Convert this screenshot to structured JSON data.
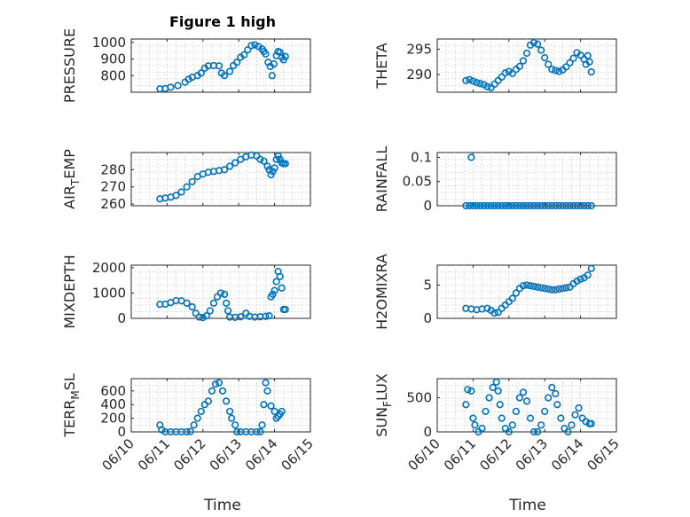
{
  "figure": {
    "title": "Figure 1 high",
    "marker_color": "#0072BD",
    "xticks": [
      "06/10",
      "06/11",
      "06/12",
      "06/13",
      "06/14",
      "06/15"
    ],
    "xlabel": "Time"
  },
  "chart_data": [
    {
      "type": "scatter",
      "ylabel": "PRESSURE",
      "xlim": [
        0,
        5
      ],
      "ylim": [
        700,
        1020
      ],
      "yticks": [
        800,
        900,
        1000
      ],
      "x_unit": "days since 06/10",
      "points": [
        [
          0.8,
          720
        ],
        [
          0.95,
          722
        ],
        [
          1.1,
          730
        ],
        [
          1.3,
          740
        ],
        [
          1.5,
          760
        ],
        [
          1.6,
          778
        ],
        [
          1.7,
          790
        ],
        [
          1.85,
          800
        ],
        [
          1.95,
          815
        ],
        [
          2.05,
          845
        ],
        [
          2.15,
          858
        ],
        [
          2.3,
          860
        ],
        [
          2.45,
          858
        ],
        [
          2.52,
          815
        ],
        [
          2.6,
          800
        ],
        [
          2.75,
          825
        ],
        [
          2.85,
          860
        ],
        [
          2.95,
          880
        ],
        [
          3.05,
          910
        ],
        [
          3.15,
          925
        ],
        [
          3.25,
          955
        ],
        [
          3.35,
          980
        ],
        [
          3.45,
          985
        ],
        [
          3.55,
          975
        ],
        [
          3.65,
          960
        ],
        [
          3.7,
          945
        ],
        [
          3.75,
          930
        ],
        [
          3.82,
          880
        ],
        [
          3.88,
          855
        ],
        [
          3.93,
          800
        ],
        [
          3.98,
          870
        ],
        [
          4.05,
          920
        ],
        [
          4.1,
          945
        ],
        [
          4.15,
          940
        ],
        [
          4.2,
          910
        ],
        [
          4.25,
          895
        ],
        [
          4.3,
          915
        ]
      ]
    },
    {
      "type": "scatter",
      "ylabel": "THETA",
      "xlim": [
        0,
        5
      ],
      "ylim": [
        286.5,
        297
      ],
      "yticks": [
        290,
        295
      ],
      "points": [
        [
          0.8,
          288.8
        ],
        [
          0.9,
          289
        ],
        [
          1.0,
          288.7
        ],
        [
          1.1,
          288.4
        ],
        [
          1.2,
          288.2
        ],
        [
          1.3,
          288
        ],
        [
          1.4,
          287.6
        ],
        [
          1.5,
          287.4
        ],
        [
          1.6,
          288.1
        ],
        [
          1.7,
          288.8
        ],
        [
          1.8,
          289.5
        ],
        [
          1.9,
          290.3
        ],
        [
          2.0,
          290.6
        ],
        [
          2.1,
          290.2
        ],
        [
          2.2,
          291
        ],
        [
          2.3,
          291.6
        ],
        [
          2.4,
          292.7
        ],
        [
          2.5,
          294.2
        ],
        [
          2.6,
          295.8
        ],
        [
          2.7,
          296.3
        ],
        [
          2.8,
          296
        ],
        [
          2.9,
          294.8
        ],
        [
          3.0,
          293.3
        ],
        [
          3.1,
          292
        ],
        [
          3.2,
          291
        ],
        [
          3.3,
          290.8
        ],
        [
          3.4,
          290.6
        ],
        [
          3.5,
          290.9
        ],
        [
          3.6,
          291.5
        ],
        [
          3.7,
          292.3
        ],
        [
          3.8,
          293.2
        ],
        [
          3.9,
          294.3
        ],
        [
          4.0,
          293.8
        ],
        [
          4.1,
          293
        ],
        [
          4.15,
          292
        ],
        [
          4.2,
          293.7
        ],
        [
          4.25,
          292.5
        ],
        [
          4.3,
          290.5
        ]
      ]
    },
    {
      "type": "scatter",
      "ylabel": "AIR_TEMP",
      "xlim": [
        0,
        5
      ],
      "ylim": [
        259,
        290
      ],
      "yticks": [
        260,
        270,
        280
      ],
      "points": [
        [
          0.8,
          263
        ],
        [
          0.95,
          263.5
        ],
        [
          1.1,
          264
        ],
        [
          1.25,
          265
        ],
        [
          1.4,
          267
        ],
        [
          1.55,
          270
        ],
        [
          1.7,
          273
        ],
        [
          1.85,
          276
        ],
        [
          2.0,
          277.5
        ],
        [
          2.15,
          278.5
        ],
        [
          2.3,
          279
        ],
        [
          2.45,
          279.5
        ],
        [
          2.6,
          280
        ],
        [
          2.75,
          282
        ],
        [
          2.9,
          284
        ],
        [
          3.05,
          286
        ],
        [
          3.2,
          287.5
        ],
        [
          3.35,
          288.5
        ],
        [
          3.5,
          288
        ],
        [
          3.6,
          286
        ],
        [
          3.7,
          285
        ],
        [
          3.8,
          282
        ],
        [
          3.85,
          280
        ],
        [
          3.9,
          277
        ],
        [
          3.95,
          279
        ],
        [
          4.0,
          281
        ],
        [
          4.05,
          286
        ],
        [
          4.1,
          288
        ],
        [
          4.15,
          286
        ],
        [
          4.2,
          284
        ],
        [
          4.25,
          283.5
        ],
        [
          4.3,
          283.5
        ]
      ]
    },
    {
      "type": "scatter",
      "ylabel": "RAINFALL",
      "xlim": [
        0,
        5
      ],
      "ylim": [
        0,
        0.11
      ],
      "yticks": [
        0,
        0.05,
        0.1
      ],
      "points": [
        [
          0.95,
          0.1
        ],
        [
          0.8,
          0
        ],
        [
          0.9,
          0
        ],
        [
          1.0,
          0
        ],
        [
          1.1,
          0
        ],
        [
          1.2,
          0
        ],
        [
          1.3,
          0
        ],
        [
          1.4,
          0
        ],
        [
          1.5,
          0
        ],
        [
          1.6,
          0
        ],
        [
          1.7,
          0
        ],
        [
          1.8,
          0
        ],
        [
          1.9,
          0
        ],
        [
          2.0,
          0
        ],
        [
          2.1,
          0
        ],
        [
          2.2,
          0
        ],
        [
          2.3,
          0
        ],
        [
          2.4,
          0
        ],
        [
          2.5,
          0
        ],
        [
          2.6,
          0
        ],
        [
          2.7,
          0
        ],
        [
          2.8,
          0
        ],
        [
          2.9,
          0
        ],
        [
          3.0,
          0
        ],
        [
          3.1,
          0
        ],
        [
          3.2,
          0
        ],
        [
          3.3,
          0
        ],
        [
          3.4,
          0
        ],
        [
          3.5,
          0
        ],
        [
          3.6,
          0
        ],
        [
          3.7,
          0
        ],
        [
          3.8,
          0
        ],
        [
          3.9,
          0
        ],
        [
          4.0,
          0
        ],
        [
          4.1,
          0
        ],
        [
          4.2,
          0
        ],
        [
          4.3,
          0
        ]
      ]
    },
    {
      "type": "scatter",
      "ylabel": "MIXDEPTH",
      "xlim": [
        0,
        5
      ],
      "ylim": [
        0,
        2100
      ],
      "yticks": [
        0,
        1000,
        2000
      ],
      "points": [
        [
          0.8,
          550
        ],
        [
          0.95,
          560
        ],
        [
          1.1,
          620
        ],
        [
          1.25,
          700
        ],
        [
          1.4,
          690
        ],
        [
          1.55,
          600
        ],
        [
          1.7,
          450
        ],
        [
          1.8,
          200
        ],
        [
          1.9,
          50
        ],
        [
          2.0,
          30
        ],
        [
          2.1,
          100
        ],
        [
          2.2,
          300
        ],
        [
          2.3,
          600
        ],
        [
          2.4,
          850
        ],
        [
          2.5,
          1000
        ],
        [
          2.6,
          950
        ],
        [
          2.65,
          600
        ],
        [
          2.7,
          300
        ],
        [
          2.75,
          50
        ],
        [
          2.9,
          40
        ],
        [
          3.05,
          60
        ],
        [
          3.2,
          200
        ],
        [
          3.3,
          80
        ],
        [
          3.45,
          50
        ],
        [
          3.6,
          60
        ],
        [
          3.75,
          80
        ],
        [
          3.85,
          100
        ],
        [
          3.9,
          850
        ],
        [
          3.95,
          950
        ],
        [
          4.0,
          1100
        ],
        [
          4.05,
          1450
        ],
        [
          4.1,
          1850
        ],
        [
          4.15,
          1650
        ],
        [
          4.2,
          1200
        ],
        [
          4.25,
          350
        ],
        [
          4.3,
          350
        ]
      ]
    },
    {
      "type": "scatter",
      "ylabel": "H2OMIXRA",
      "xlim": [
        0,
        5
      ],
      "ylim": [
        0,
        8
      ],
      "yticks": [
        0,
        5
      ],
      "points": [
        [
          0.8,
          1.5
        ],
        [
          0.95,
          1.4
        ],
        [
          1.1,
          1.3
        ],
        [
          1.25,
          1.4
        ],
        [
          1.4,
          1.5
        ],
        [
          1.5,
          1.2
        ],
        [
          1.6,
          0.8
        ],
        [
          1.7,
          0.9
        ],
        [
          1.8,
          1.5
        ],
        [
          1.9,
          2
        ],
        [
          2.0,
          2.5
        ],
        [
          2.1,
          3
        ],
        [
          2.2,
          3.8
        ],
        [
          2.3,
          4.5
        ],
        [
          2.4,
          4.9
        ],
        [
          2.5,
          5
        ],
        [
          2.6,
          4.9
        ],
        [
          2.7,
          4.8
        ],
        [
          2.8,
          4.7
        ],
        [
          2.9,
          4.6
        ],
        [
          3.0,
          4.5
        ],
        [
          3.1,
          4.4
        ],
        [
          3.2,
          4.3
        ],
        [
          3.3,
          4.3
        ],
        [
          3.4,
          4.4
        ],
        [
          3.5,
          4.5
        ],
        [
          3.6,
          4.6
        ],
        [
          3.7,
          4.7
        ],
        [
          3.8,
          5.2
        ],
        [
          3.9,
          5.6
        ],
        [
          4.0,
          5.9
        ],
        [
          4.1,
          6.1
        ],
        [
          4.2,
          6.5
        ],
        [
          4.3,
          7.5
        ]
      ]
    },
    {
      "type": "scatter",
      "ylabel": "TERR_MSL",
      "xlim": [
        0,
        5
      ],
      "ylim": [
        0,
        780
      ],
      "yticks": [
        0,
        200,
        400,
        600
      ],
      "points": [
        [
          0.8,
          100
        ],
        [
          0.85,
          30
        ],
        [
          0.95,
          0
        ],
        [
          1.1,
          0
        ],
        [
          1.25,
          0
        ],
        [
          1.4,
          0
        ],
        [
          1.55,
          0
        ],
        [
          1.65,
          5
        ],
        [
          1.75,
          100
        ],
        [
          1.85,
          200
        ],
        [
          1.95,
          300
        ],
        [
          2.05,
          400
        ],
        [
          2.15,
          450
        ],
        [
          2.25,
          600
        ],
        [
          2.35,
          700
        ],
        [
          2.45,
          720
        ],
        [
          2.55,
          600
        ],
        [
          2.65,
          450
        ],
        [
          2.75,
          300
        ],
        [
          2.8,
          200
        ],
        [
          2.9,
          100
        ],
        [
          2.95,
          0
        ],
        [
          3.05,
          0
        ],
        [
          3.2,
          0
        ],
        [
          3.35,
          0
        ],
        [
          3.5,
          0
        ],
        [
          3.6,
          0
        ],
        [
          3.65,
          100
        ],
        [
          3.7,
          400
        ],
        [
          3.75,
          720
        ],
        [
          3.8,
          600
        ],
        [
          3.9,
          380
        ],
        [
          4.0,
          300
        ],
        [
          4.05,
          200
        ],
        [
          4.1,
          230
        ],
        [
          4.15,
          260
        ],
        [
          4.2,
          300
        ]
      ]
    },
    {
      "type": "scatter",
      "ylabel": "SUN_FLUX",
      "xlim": [
        0,
        5
      ],
      "ylim": [
        0,
        780
      ],
      "yticks": [
        0,
        500
      ],
      "points": [
        [
          0.8,
          400
        ],
        [
          0.85,
          620
        ],
        [
          0.95,
          600
        ],
        [
          1.0,
          200
        ],
        [
          1.05,
          100
        ],
        [
          1.15,
          0
        ],
        [
          1.25,
          50
        ],
        [
          1.35,
          300
        ],
        [
          1.45,
          500
        ],
        [
          1.55,
          650
        ],
        [
          1.65,
          730
        ],
        [
          1.7,
          600
        ],
        [
          1.75,
          400
        ],
        [
          1.8,
          200
        ],
        [
          1.9,
          50
        ],
        [
          2.0,
          0
        ],
        [
          2.1,
          100
        ],
        [
          2.2,
          300
        ],
        [
          2.3,
          500
        ],
        [
          2.4,
          580
        ],
        [
          2.5,
          450
        ],
        [
          2.6,
          200
        ],
        [
          2.7,
          0
        ],
        [
          2.8,
          0
        ],
        [
          2.9,
          100
        ],
        [
          3.0,
          300
        ],
        [
          3.1,
          500
        ],
        [
          3.2,
          650
        ],
        [
          3.3,
          560
        ],
        [
          3.35,
          400
        ],
        [
          3.45,
          200
        ],
        [
          3.55,
          50
        ],
        [
          3.65,
          0
        ],
        [
          3.75,
          100
        ],
        [
          3.85,
          250
        ],
        [
          3.95,
          350
        ],
        [
          4.05,
          200
        ],
        [
          4.15,
          150
        ],
        [
          4.25,
          120
        ],
        [
          4.3,
          120
        ]
      ]
    }
  ]
}
